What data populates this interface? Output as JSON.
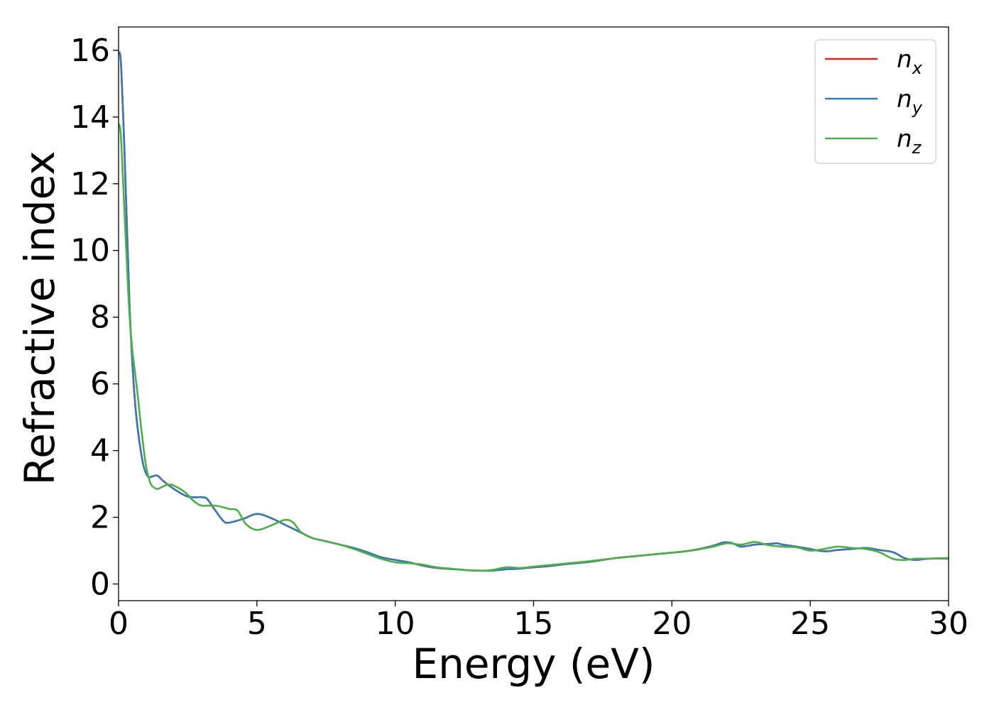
{
  "chart_data": {
    "type": "line",
    "title": "",
    "xlabel": "Energy (eV)",
    "ylabel": "Refractive index",
    "xlim": [
      0,
      30
    ],
    "ylim": [
      -0.5,
      16.7
    ],
    "xticks": [
      0,
      5,
      10,
      15,
      20,
      25,
      30
    ],
    "yticks": [
      0,
      2,
      4,
      6,
      8,
      10,
      12,
      14,
      16
    ],
    "grid": false,
    "legend_position": "top-right",
    "series": [
      {
        "name": "n",
        "subscript": "x",
        "color": "#d62728",
        "x": [
          0,
          0.05,
          0.1,
          0.2,
          0.3,
          0.4,
          0.5,
          0.6,
          0.7,
          0.8,
          0.9,
          1.0,
          1.1,
          1.2,
          1.4,
          1.6,
          2.0,
          2.5,
          3.0,
          3.2,
          3.5,
          3.8,
          4.0,
          4.5,
          5.0,
          5.5,
          6.0,
          6.5,
          7.0,
          7.5,
          8.0,
          8.5,
          9.0,
          9.5,
          10.0,
          10.5,
          11.0,
          11.5,
          12.0,
          12.5,
          13.0,
          13.5,
          14.0,
          14.5,
          15.0,
          15.5,
          16.0,
          16.5,
          17.0,
          17.5,
          18.0,
          18.5,
          19.0,
          19.5,
          20.0,
          20.5,
          21.0,
          21.5,
          21.9,
          22.2,
          22.5,
          23.0,
          23.5,
          23.8,
          24.0,
          24.5,
          25.0,
          25.3,
          25.6,
          26.0,
          26.5,
          27.0,
          27.5,
          28.0,
          28.4,
          28.8,
          29.3,
          30.0
        ],
        "values": [
          15.9,
          15.9,
          15.4,
          13.3,
          10.8,
          8.3,
          6.6,
          5.4,
          4.6,
          4.0,
          3.55,
          3.3,
          3.2,
          3.22,
          3.25,
          3.1,
          2.85,
          2.62,
          2.6,
          2.55,
          2.2,
          1.88,
          1.84,
          1.95,
          2.1,
          1.98,
          1.78,
          1.58,
          1.38,
          1.28,
          1.18,
          1.08,
          0.95,
          0.8,
          0.72,
          0.65,
          0.55,
          0.48,
          0.45,
          0.42,
          0.4,
          0.4,
          0.44,
          0.46,
          0.5,
          0.53,
          0.58,
          0.62,
          0.66,
          0.72,
          0.78,
          0.82,
          0.86,
          0.9,
          0.94,
          0.98,
          1.05,
          1.15,
          1.25,
          1.22,
          1.12,
          1.18,
          1.2,
          1.22,
          1.18,
          1.12,
          1.05,
          1.0,
          0.98,
          1.02,
          1.05,
          1.08,
          1.02,
          0.95,
          0.78,
          0.72,
          0.76,
          0.76
        ]
      },
      {
        "name": "n",
        "subscript": "y",
        "color": "#3c78b4",
        "x": [
          0,
          0.05,
          0.1,
          0.2,
          0.3,
          0.4,
          0.5,
          0.6,
          0.7,
          0.8,
          0.9,
          1.0,
          1.1,
          1.2,
          1.4,
          1.6,
          2.0,
          2.5,
          3.0,
          3.2,
          3.5,
          3.8,
          4.0,
          4.5,
          5.0,
          5.5,
          6.0,
          6.5,
          7.0,
          7.5,
          8.0,
          8.5,
          9.0,
          9.5,
          10.0,
          10.5,
          11.0,
          11.5,
          12.0,
          12.5,
          13.0,
          13.5,
          14.0,
          14.5,
          15.0,
          15.5,
          16.0,
          16.5,
          17.0,
          17.5,
          18.0,
          18.5,
          19.0,
          19.5,
          20.0,
          20.5,
          21.0,
          21.5,
          21.9,
          22.2,
          22.5,
          23.0,
          23.5,
          23.8,
          24.0,
          24.5,
          25.0,
          25.3,
          25.6,
          26.0,
          26.5,
          27.0,
          27.5,
          28.0,
          28.4,
          28.8,
          29.3,
          30.0
        ],
        "values": [
          15.9,
          15.9,
          15.4,
          13.3,
          10.8,
          8.3,
          6.6,
          5.4,
          4.6,
          4.0,
          3.55,
          3.3,
          3.2,
          3.22,
          3.25,
          3.1,
          2.85,
          2.62,
          2.6,
          2.55,
          2.2,
          1.88,
          1.84,
          1.95,
          2.1,
          1.98,
          1.78,
          1.58,
          1.38,
          1.28,
          1.18,
          1.08,
          0.95,
          0.8,
          0.72,
          0.65,
          0.55,
          0.48,
          0.45,
          0.42,
          0.4,
          0.4,
          0.44,
          0.46,
          0.5,
          0.53,
          0.58,
          0.62,
          0.66,
          0.72,
          0.78,
          0.82,
          0.86,
          0.9,
          0.94,
          0.98,
          1.05,
          1.15,
          1.25,
          1.22,
          1.12,
          1.18,
          1.2,
          1.22,
          1.18,
          1.12,
          1.05,
          1.0,
          0.98,
          1.02,
          1.05,
          1.08,
          1.02,
          0.95,
          0.78,
          0.72,
          0.76,
          0.76
        ]
      },
      {
        "name": "n",
        "subscript": "z",
        "color": "#4daf4a",
        "x": [
          0,
          0.05,
          0.1,
          0.2,
          0.3,
          0.4,
          0.5,
          0.6,
          0.7,
          0.8,
          0.9,
          1.0,
          1.1,
          1.2,
          1.4,
          1.6,
          1.8,
          2.0,
          2.4,
          2.7,
          3.0,
          3.5,
          4.0,
          4.3,
          4.6,
          5.0,
          5.5,
          6.0,
          6.3,
          6.6,
          7.0,
          7.5,
          8.0,
          8.5,
          9.0,
          9.5,
          10.0,
          10.5,
          11.0,
          11.5,
          12.0,
          12.5,
          13.0,
          13.5,
          14.0,
          14.5,
          15.0,
          15.5,
          16.0,
          16.5,
          17.0,
          17.5,
          18.0,
          18.5,
          19.0,
          19.5,
          20.0,
          20.5,
          21.0,
          21.5,
          22.0,
          22.5,
          23.0,
          23.5,
          24.0,
          24.5,
          25.0,
          25.5,
          26.0,
          26.5,
          27.0,
          27.5,
          28.0,
          28.4,
          28.8,
          29.3,
          30.0
        ],
        "values": [
          13.8,
          13.7,
          13.2,
          11.4,
          9.6,
          8.0,
          7.0,
          6.3,
          5.6,
          4.8,
          4.1,
          3.5,
          3.15,
          2.95,
          2.85,
          2.92,
          2.98,
          2.95,
          2.75,
          2.5,
          2.35,
          2.35,
          2.25,
          2.2,
          1.8,
          1.62,
          1.75,
          1.92,
          1.85,
          1.55,
          1.38,
          1.28,
          1.18,
          1.05,
          0.9,
          0.75,
          0.65,
          0.62,
          0.58,
          0.5,
          0.46,
          0.42,
          0.4,
          0.42,
          0.5,
          0.48,
          0.52,
          0.56,
          0.6,
          0.64,
          0.68,
          0.73,
          0.78,
          0.82,
          0.86,
          0.9,
          0.94,
          0.98,
          1.04,
          1.12,
          1.22,
          1.18,
          1.26,
          1.16,
          1.12,
          1.1,
          1.0,
          1.05,
          1.12,
          1.08,
          1.05,
          0.95,
          0.75,
          0.72,
          0.76,
          0.76,
          0.78
        ]
      }
    ]
  }
}
